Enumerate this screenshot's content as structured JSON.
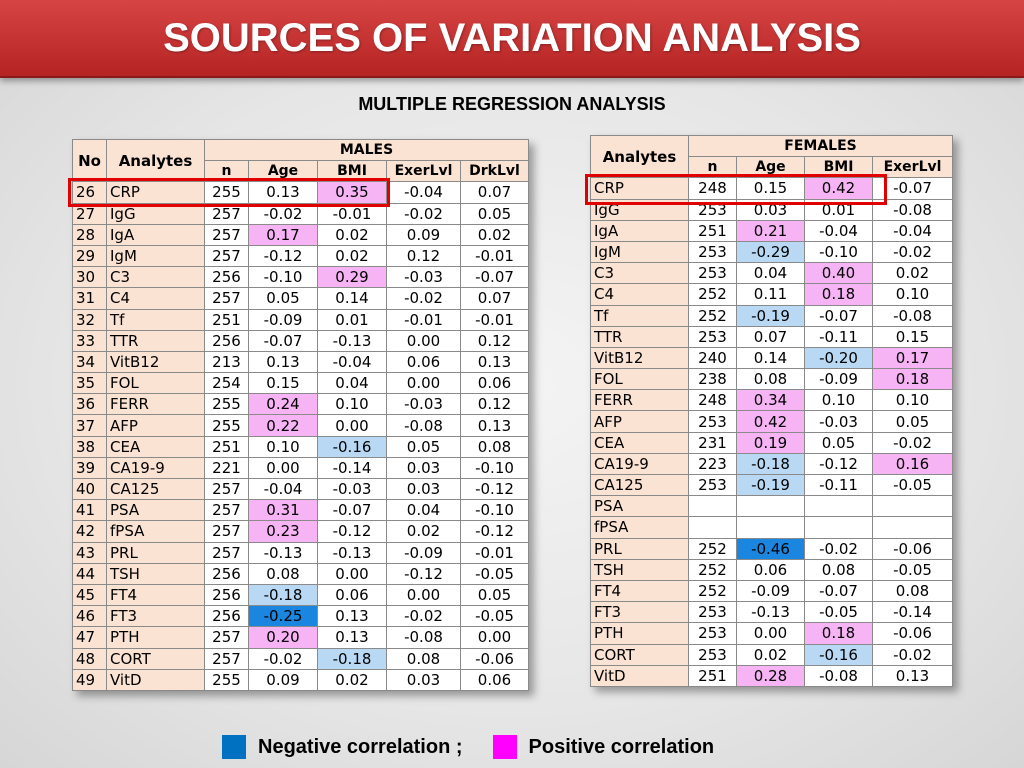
{
  "title": "SOURCES OF VARIATION ANALYSIS",
  "subtitle": "MULTIPLE REGRESSION ANALYSIS",
  "colors": {
    "negative": "#0070c0",
    "positive": "#ff00ff",
    "title_bar": "#c0302e"
  },
  "legend": {
    "negative_label": "Negative correlation ;",
    "positive_label": "Positive correlation"
  },
  "males": {
    "group": "MALES",
    "headers": [
      "No",
      "Analytes",
      "n",
      "Age",
      "BMI",
      "ExerLvl",
      "DrkLvl"
    ],
    "rows": [
      {
        "no": "26",
        "analyte": "CRP",
        "n": "255",
        "age": "0.13",
        "bmi": "0.35",
        "exer": "-0.04",
        "drk": "0.07",
        "c": [
          "",
          "",
          "p",
          "",
          ""
        ]
      },
      {
        "no": "27",
        "analyte": "IgG",
        "n": "257",
        "age": "-0.02",
        "bmi": "-0.01",
        "exer": "-0.02",
        "drk": "0.05",
        "c": [
          "",
          "",
          "",
          "",
          ""
        ]
      },
      {
        "no": "28",
        "analyte": "IgA",
        "n": "257",
        "age": "0.17",
        "bmi": "0.02",
        "exer": "0.09",
        "drk": "0.02",
        "c": [
          "",
          "p",
          "",
          "",
          ""
        ]
      },
      {
        "no": "29",
        "analyte": "IgM",
        "n": "257",
        "age": "-0.12",
        "bmi": "0.02",
        "exer": "0.12",
        "drk": "-0.01",
        "c": [
          "",
          "",
          "",
          "",
          ""
        ]
      },
      {
        "no": "30",
        "analyte": "C3",
        "n": "256",
        "age": "-0.10",
        "bmi": "0.29",
        "exer": "-0.03",
        "drk": "-0.07",
        "c": [
          "",
          "",
          "p",
          "",
          ""
        ]
      },
      {
        "no": "31",
        "analyte": "C4",
        "n": "257",
        "age": "0.05",
        "bmi": "0.14",
        "exer": "-0.02",
        "drk": "0.07",
        "c": [
          "",
          "",
          "",
          "",
          ""
        ]
      },
      {
        "no": "32",
        "analyte": "Tf",
        "n": "251",
        "age": "-0.09",
        "bmi": "0.01",
        "exer": "-0.01",
        "drk": "-0.01",
        "c": [
          "",
          "",
          "",
          "",
          ""
        ]
      },
      {
        "no": "33",
        "analyte": "TTR",
        "n": "256",
        "age": "-0.07",
        "bmi": "-0.13",
        "exer": "0.00",
        "drk": "0.12",
        "c": [
          "",
          "",
          "",
          "",
          ""
        ]
      },
      {
        "no": "34",
        "analyte": "VitB12",
        "n": "213",
        "age": "0.13",
        "bmi": "-0.04",
        "exer": "0.06",
        "drk": "0.13",
        "c": [
          "",
          "",
          "",
          "",
          ""
        ]
      },
      {
        "no": "35",
        "analyte": "FOL",
        "n": "254",
        "age": "0.15",
        "bmi": "0.04",
        "exer": "0.00",
        "drk": "0.06",
        "c": [
          "",
          "",
          "",
          "",
          ""
        ]
      },
      {
        "no": "36",
        "analyte": "FERR",
        "n": "255",
        "age": "0.24",
        "bmi": "0.10",
        "exer": "-0.03",
        "drk": "0.12",
        "c": [
          "",
          "p",
          "",
          "",
          ""
        ]
      },
      {
        "no": "37",
        "analyte": "AFP",
        "n": "255",
        "age": "0.22",
        "bmi": "0.00",
        "exer": "-0.08",
        "drk": "0.13",
        "c": [
          "",
          "p",
          "",
          "",
          ""
        ]
      },
      {
        "no": "38",
        "analyte": "CEA",
        "n": "251",
        "age": "0.10",
        "bmi": "-0.16",
        "exer": "0.05",
        "drk": "0.08",
        "c": [
          "",
          "",
          "n",
          "",
          ""
        ]
      },
      {
        "no": "39",
        "analyte": "CA19-9",
        "n": "221",
        "age": "0.00",
        "bmi": "-0.14",
        "exer": "0.03",
        "drk": "-0.10",
        "c": [
          "",
          "",
          "",
          "",
          ""
        ]
      },
      {
        "no": "40",
        "analyte": "CA125",
        "n": "257",
        "age": "-0.04",
        "bmi": "-0.03",
        "exer": "0.03",
        "drk": "-0.12",
        "c": [
          "",
          "",
          "",
          "",
          ""
        ]
      },
      {
        "no": "41",
        "analyte": "PSA",
        "n": "257",
        "age": "0.31",
        "bmi": "-0.07",
        "exer": "0.04",
        "drk": "-0.10",
        "c": [
          "",
          "p",
          "",
          "",
          ""
        ]
      },
      {
        "no": "42",
        "analyte": "fPSA",
        "n": "257",
        "age": "0.23",
        "bmi": "-0.12",
        "exer": "0.02",
        "drk": "-0.12",
        "c": [
          "",
          "p",
          "",
          "",
          ""
        ]
      },
      {
        "no": "43",
        "analyte": "PRL",
        "n": "257",
        "age": "-0.13",
        "bmi": "-0.13",
        "exer": "-0.09",
        "drk": "-0.01",
        "c": [
          "",
          "",
          "",
          "",
          ""
        ]
      },
      {
        "no": "44",
        "analyte": "TSH",
        "n": "256",
        "age": "0.08",
        "bmi": "0.00",
        "exer": "-0.12",
        "drk": "-0.05",
        "c": [
          "",
          "",
          "",
          "",
          ""
        ]
      },
      {
        "no": "45",
        "analyte": "FT4",
        "n": "256",
        "age": "-0.18",
        "bmi": "0.06",
        "exer": "0.00",
        "drk": "0.05",
        "c": [
          "",
          "n",
          "",
          "",
          ""
        ]
      },
      {
        "no": "46",
        "analyte": "FT3",
        "n": "256",
        "age": "-0.25",
        "bmi": "0.13",
        "exer": "-0.02",
        "drk": "-0.05",
        "c": [
          "",
          "N",
          "",
          "",
          ""
        ]
      },
      {
        "no": "47",
        "analyte": "PTH",
        "n": "257",
        "age": "0.20",
        "bmi": "0.13",
        "exer": "-0.08",
        "drk": "0.00",
        "c": [
          "",
          "p",
          "",
          "",
          ""
        ]
      },
      {
        "no": "48",
        "analyte": "CORT",
        "n": "257",
        "age": "-0.02",
        "bmi": "-0.18",
        "exer": "0.08",
        "drk": "-0.06",
        "c": [
          "",
          "",
          "n",
          "",
          ""
        ]
      },
      {
        "no": "49",
        "analyte": "VitD",
        "n": "255",
        "age": "0.09",
        "bmi": "0.02",
        "exer": "0.03",
        "drk": "0.06",
        "c": [
          "",
          "",
          "",
          "",
          ""
        ]
      }
    ]
  },
  "females": {
    "group": "FEMALES",
    "headers": [
      "Analytes",
      "n",
      "Age",
      "BMI",
      "ExerLvl"
    ],
    "rows": [
      {
        "analyte": "CRP",
        "n": "248",
        "age": "0.15",
        "bmi": "0.42",
        "exer": "-0.07",
        "c": [
          "",
          "",
          "p",
          ""
        ]
      },
      {
        "analyte": "IgG",
        "n": "253",
        "age": "0.03",
        "bmi": "0.01",
        "exer": "-0.08",
        "c": [
          "",
          "",
          "",
          ""
        ]
      },
      {
        "analyte": "IgA",
        "n": "251",
        "age": "0.21",
        "bmi": "-0.04",
        "exer": "-0.04",
        "c": [
          "",
          "p",
          "",
          ""
        ]
      },
      {
        "analyte": "IgM",
        "n": "253",
        "age": "-0.29",
        "bmi": "-0.10",
        "exer": "-0.02",
        "c": [
          "",
          "n",
          "",
          ""
        ]
      },
      {
        "analyte": "C3",
        "n": "253",
        "age": "0.04",
        "bmi": "0.40",
        "exer": "0.02",
        "c": [
          "",
          "",
          "p",
          ""
        ]
      },
      {
        "analyte": "C4",
        "n": "252",
        "age": "0.11",
        "bmi": "0.18",
        "exer": "0.10",
        "c": [
          "",
          "",
          "p",
          ""
        ]
      },
      {
        "analyte": "Tf",
        "n": "252",
        "age": "-0.19",
        "bmi": "-0.07",
        "exer": "-0.08",
        "c": [
          "",
          "n",
          "",
          ""
        ]
      },
      {
        "analyte": "TTR",
        "n": "253",
        "age": "0.07",
        "bmi": "-0.11",
        "exer": "0.15",
        "c": [
          "",
          "",
          "",
          ""
        ]
      },
      {
        "analyte": "VitB12",
        "n": "240",
        "age": "0.14",
        "bmi": "-0.20",
        "exer": "0.17",
        "c": [
          "",
          "",
          "n",
          "p"
        ]
      },
      {
        "analyte": "FOL",
        "n": "238",
        "age": "0.08",
        "bmi": "-0.09",
        "exer": "0.18",
        "c": [
          "",
          "",
          "",
          "p"
        ]
      },
      {
        "analyte": "FERR",
        "n": "248",
        "age": "0.34",
        "bmi": "0.10",
        "exer": "0.10",
        "c": [
          "",
          "p",
          "",
          ""
        ]
      },
      {
        "analyte": "AFP",
        "n": "253",
        "age": "0.42",
        "bmi": "-0.03",
        "exer": "0.05",
        "c": [
          "",
          "p",
          "",
          ""
        ]
      },
      {
        "analyte": "CEA",
        "n": "231",
        "age": "0.19",
        "bmi": "0.05",
        "exer": "-0.02",
        "c": [
          "",
          "p",
          "",
          ""
        ]
      },
      {
        "analyte": "CA19-9",
        "n": "223",
        "age": "-0.18",
        "bmi": "-0.12",
        "exer": "0.16",
        "c": [
          "",
          "n",
          "",
          "p"
        ]
      },
      {
        "analyte": "CA125",
        "n": "253",
        "age": "-0.19",
        "bmi": "-0.11",
        "exer": "-0.05",
        "c": [
          "",
          "n",
          "",
          ""
        ]
      },
      {
        "analyte": "PSA",
        "n": "",
        "age": "",
        "bmi": "",
        "exer": "",
        "c": [
          "",
          "",
          "",
          ""
        ]
      },
      {
        "analyte": "fPSA",
        "n": "",
        "age": "",
        "bmi": "",
        "exer": "",
        "c": [
          "",
          "",
          "",
          ""
        ]
      },
      {
        "analyte": "PRL",
        "n": "252",
        "age": "-0.46",
        "bmi": "-0.02",
        "exer": "-0.06",
        "c": [
          "",
          "N",
          "",
          ""
        ]
      },
      {
        "analyte": "TSH",
        "n": "252",
        "age": "0.06",
        "bmi": "0.08",
        "exer": "-0.05",
        "c": [
          "",
          "",
          "",
          ""
        ]
      },
      {
        "analyte": "FT4",
        "n": "252",
        "age": "-0.09",
        "bmi": "-0.07",
        "exer": "0.08",
        "c": [
          "",
          "",
          "",
          ""
        ]
      },
      {
        "analyte": "FT3",
        "n": "253",
        "age": "-0.13",
        "bmi": "-0.05",
        "exer": "-0.14",
        "c": [
          "",
          "",
          "",
          ""
        ]
      },
      {
        "analyte": "PTH",
        "n": "253",
        "age": "0.00",
        "bmi": "0.18",
        "exer": "-0.06",
        "c": [
          "",
          "",
          "p",
          ""
        ]
      },
      {
        "analyte": "CORT",
        "n": "253",
        "age": "0.02",
        "bmi": "-0.16",
        "exer": "-0.02",
        "c": [
          "",
          "",
          "n",
          ""
        ]
      },
      {
        "analyte": "VitD",
        "n": "251",
        "age": "0.28",
        "bmi": "-0.08",
        "exer": "0.13",
        "c": [
          "",
          "p",
          "",
          ""
        ]
      }
    ]
  }
}
